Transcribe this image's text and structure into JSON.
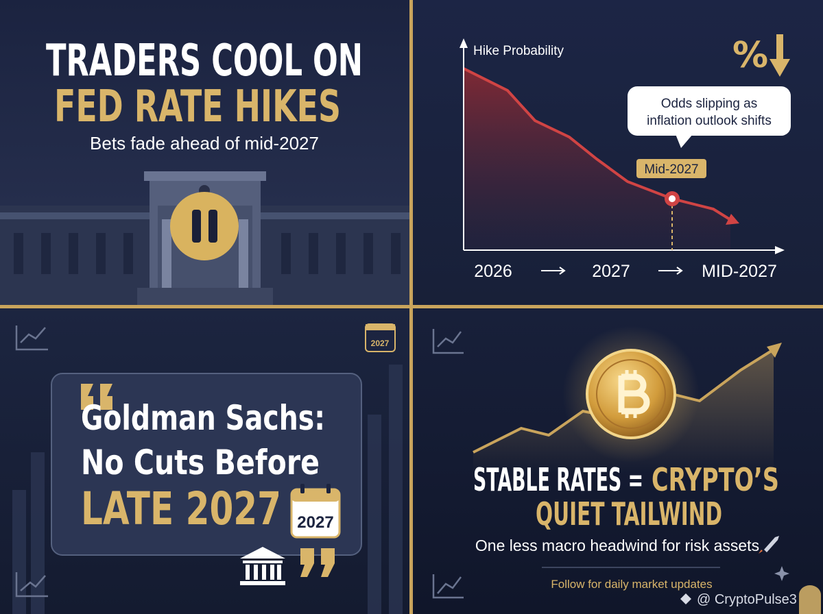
{
  "top_left": {
    "title_line1": "TRADERS COOL ON",
    "title_line2": "FED RATE HIKES",
    "subtitle": "Bets fade ahead of mid-2027"
  },
  "top_right": {
    "axis_label": "Hike Probability",
    "icon_text": "%",
    "callout": [
      "Odds slipping as",
      "inflation outlook shifts"
    ],
    "marker_label": "Mid-2027",
    "timeline": [
      "2026",
      "2027",
      "MID-2027"
    ]
  },
  "bottom_left": {
    "calendar_top": "2027",
    "quote_line1": "Goldman Sachs:",
    "quote_line2": "No Cuts Before",
    "quote_line3": "LATE 2027",
    "calendar_card": "2027"
  },
  "bottom_right": {
    "headline_white": "STABLE RATES =",
    "headline_gold": "CRYPTO’S",
    "headline_line2": "QUIET TAILWIND",
    "subtitle": "One less macro headwind for risk assets",
    "follow": "Follow for daily market updates",
    "watermark": "@ CryptoPulse3"
  }
}
